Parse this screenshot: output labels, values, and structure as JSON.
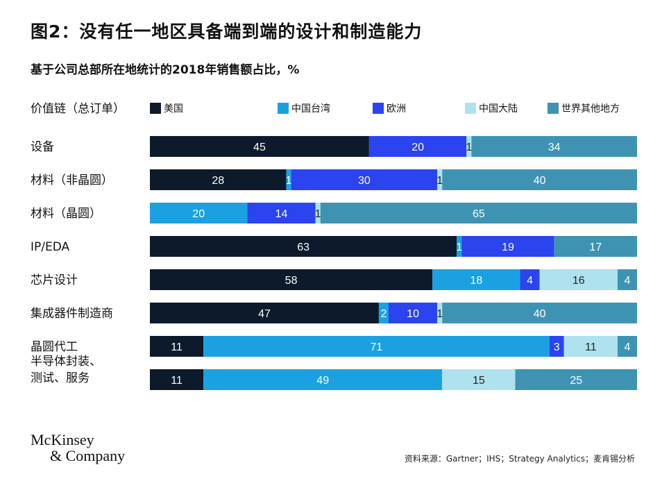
{
  "title": "图2：没有任一地区具备端到端的设计和制造能力",
  "subtitle": "基于公司总部所在地统计的2018年销售额占比，%",
  "axis_caption": "价值链（总订单）",
  "source": "资料来源：Gartner；IHS；Strategy Analytics；麦肯锡分析",
  "logo": {
    "line1": "McKinsey",
    "line2": "& Company"
  },
  "colors": {
    "美国": "#0c1a2c",
    "中国台湾": "#1ba1e2",
    "欧洲": "#2b44f0",
    "中国大陆": "#aee2ee",
    "世界其他地方": "#3e93b3"
  },
  "chart_data": {
    "type": "bar",
    "orientation": "horizontal",
    "stacked": true,
    "title": "图2：没有任一地区具备端到端的设计和制造能力",
    "subtitle": "基于公司总部所在地统计的2018年销售额占比，%",
    "legend_position": "top",
    "categories": [
      "设备",
      "材料（非晶圆）",
      "材料（晶圆）",
      "IP/EDA",
      "芯片设计",
      "集成器件制造商",
      "晶圆代工",
      "半导体封装、\n测试、服务"
    ],
    "series": [
      {
        "name": "美国",
        "values": [
          45,
          28,
          0,
          63,
          58,
          47,
          11,
          11
        ]
      },
      {
        "name": "中国台湾",
        "values": [
          0,
          1,
          20,
          1,
          18,
          2,
          71,
          49
        ]
      },
      {
        "name": "欧洲",
        "values": [
          20,
          30,
          14,
          19,
          4,
          10,
          3,
          0
        ]
      },
      {
        "name": "中国大陆",
        "values": [
          1,
          1,
          1,
          0,
          16,
          1,
          11,
          15
        ]
      },
      {
        "name": "世界其他地方",
        "values": [
          34,
          40,
          65,
          17,
          4,
          40,
          4,
          25
        ]
      }
    ],
    "xlim": [
      0,
      100
    ]
  }
}
